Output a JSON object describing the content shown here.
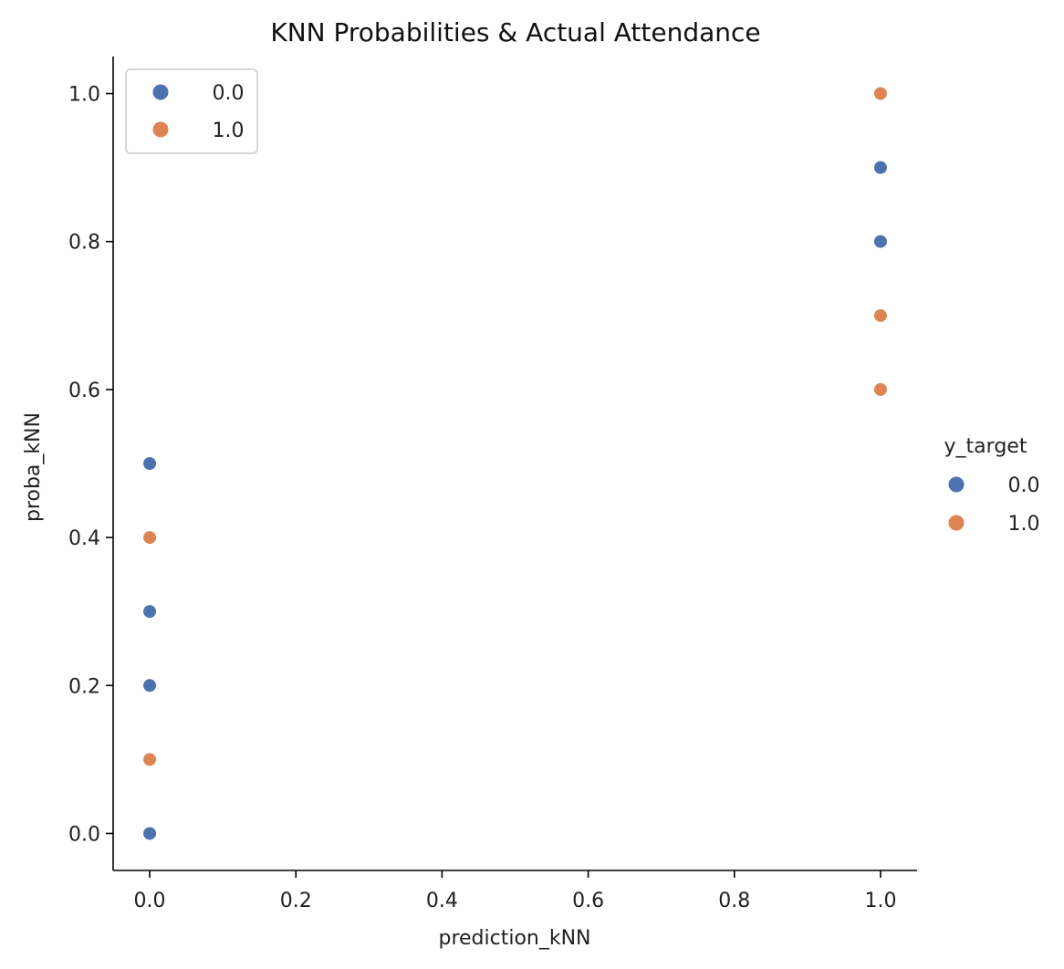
{
  "chart_data": {
    "type": "scatter",
    "title": "KNN Probabilities & Actual Attendance",
    "xlabel": "prediction_kNN",
    "ylabel": "proba_kNN",
    "xlim": [
      -0.05,
      1.05
    ],
    "ylim": [
      -0.05,
      1.05
    ],
    "x_ticks": [
      0.0,
      0.2,
      0.4,
      0.6,
      0.8,
      1.0
    ],
    "x_tick_labels": [
      "0.0",
      "0.2",
      "0.4",
      "0.6",
      "0.8",
      "1.0"
    ],
    "y_ticks": [
      0.0,
      0.2,
      0.4,
      0.6,
      0.8,
      1.0
    ],
    "y_tick_labels": [
      "0.0",
      "0.2",
      "0.4",
      "0.6",
      "0.8",
      "1.0"
    ],
    "grid": false,
    "legend_title": "y_target",
    "series": [
      {
        "name": "0.0",
        "color": "#4c72b0",
        "points": [
          {
            "x": 0.0,
            "y": 0.5
          },
          {
            "x": 0.0,
            "y": 0.3
          },
          {
            "x": 0.0,
            "y": 0.2
          },
          {
            "x": 0.0,
            "y": 0.0
          },
          {
            "x": 1.0,
            "y": 0.9
          },
          {
            "x": 1.0,
            "y": 0.8
          }
        ]
      },
      {
        "name": "1.0",
        "color": "#dd8452",
        "points": [
          {
            "x": 0.0,
            "y": 0.4
          },
          {
            "x": 0.0,
            "y": 0.1
          },
          {
            "x": 1.0,
            "y": 1.0
          },
          {
            "x": 1.0,
            "y": 0.7
          },
          {
            "x": 1.0,
            "y": 0.6
          }
        ]
      }
    ],
    "legends": [
      {
        "placement": "upper-left",
        "show_title": false
      },
      {
        "placement": "outside-right",
        "show_title": true
      }
    ]
  }
}
